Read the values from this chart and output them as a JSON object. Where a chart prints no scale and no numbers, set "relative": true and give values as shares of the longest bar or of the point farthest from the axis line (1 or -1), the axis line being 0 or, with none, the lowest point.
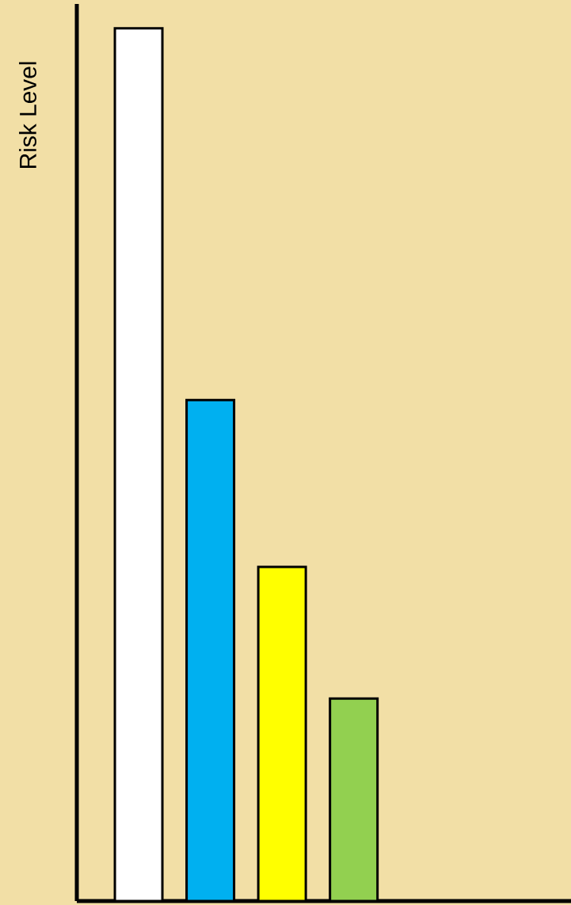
{
  "chart_data": {
    "type": "bar",
    "relative": true,
    "ylabel": "Risk Level",
    "categories": [
      null,
      null,
      null,
      null
    ],
    "values": [
      1,
      0.574,
      0.383,
      0.232
    ],
    "colors": [
      "#ffffff",
      "#00b0f0",
      "#ffff00",
      "#92d050"
    ]
  }
}
